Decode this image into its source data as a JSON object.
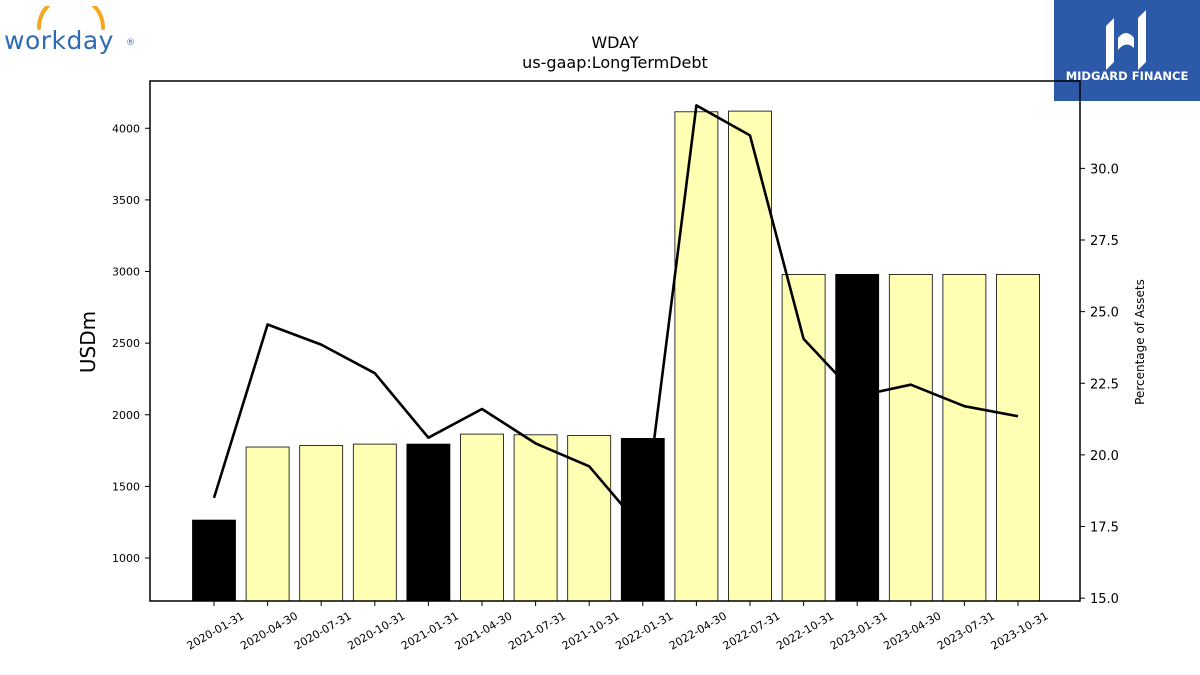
{
  "logos": {
    "left_text": "workday",
    "left_mark": "®",
    "right_text": "MIDGARD FINANCE"
  },
  "colors": {
    "bar_default": "#ffffb3",
    "bar_highlight": "#000000",
    "line": "#000000",
    "brand_blue": "#2d5aa8",
    "workday_blue": "#2e6bb7",
    "workday_orange": "#f5a623"
  },
  "chart_data": {
    "type": "bar",
    "title": "WDAY",
    "subtitle": "us-gaap:LongTermDebt",
    "ylabel": "USDm",
    "y2label": "Percentage of Assets",
    "ylim": [
      700,
      4330
    ],
    "y2lim": [
      14.9,
      33.05
    ],
    "yticks": [
      1000,
      1500,
      2000,
      2500,
      3000,
      3500,
      4000
    ],
    "y2ticks": [
      "15.0",
      "17.5",
      "20.0",
      "22.5",
      "25.0",
      "27.5",
      "30.0"
    ],
    "categories": [
      "2020-01-31",
      "2020-04-30",
      "2020-07-31",
      "2020-10-31",
      "2021-01-31",
      "2021-04-30",
      "2021-07-31",
      "2021-10-31",
      "2022-01-31",
      "2022-04-30",
      "2022-07-31",
      "2022-10-31",
      "2023-01-31",
      "2023-04-30",
      "2023-07-31",
      "2023-10-31"
    ],
    "series": [
      {
        "type": "bar",
        "axis": "left",
        "values": [
          1265,
          1775,
          1785,
          1795,
          1795,
          1865,
          1860,
          1855,
          1835,
          4115,
          4120,
          2980,
          2980,
          2980,
          2980,
          2980
        ],
        "highlight": [
          true,
          false,
          false,
          false,
          true,
          false,
          false,
          false,
          true,
          false,
          false,
          false,
          true,
          false,
          false,
          false
        ]
      },
      {
        "type": "line",
        "axis": "right",
        "values": [
          18.5,
          24.55,
          23.85,
          22.85,
          20.6,
          21.6,
          20.4,
          19.6,
          17.4,
          32.2,
          31.15,
          24.05,
          22.05,
          22.45,
          21.7,
          21.35
        ]
      }
    ],
    "grid": false
  }
}
